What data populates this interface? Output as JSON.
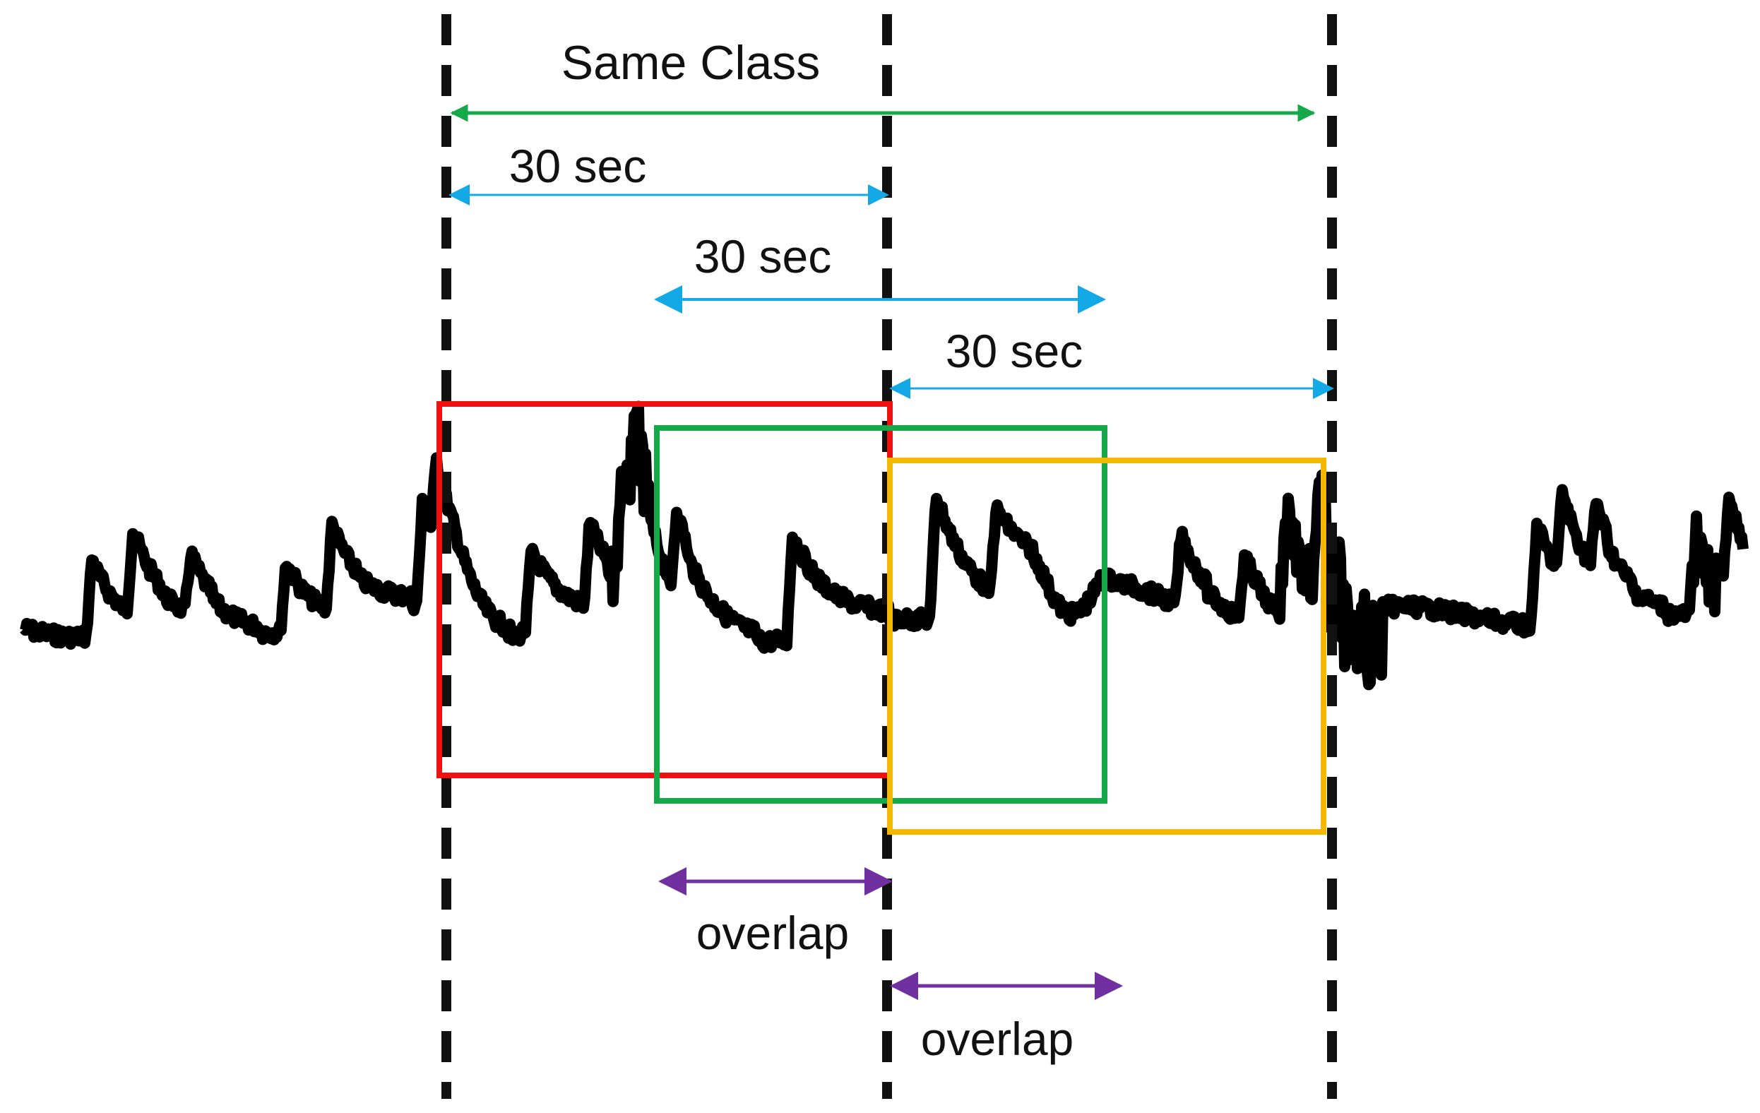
{
  "labels": {
    "same_class": "Same Class",
    "window_1": "30 sec",
    "window_2": "30 sec",
    "window_3": "30 sec",
    "overlap_1": "overlap",
    "overlap_2": "overlap"
  },
  "colors": {
    "same_class_arrow": "#17a84a",
    "window_arrow": "#12a9e6",
    "overlap_arrow": "#7030a0",
    "window_red": "#ee1111",
    "window_green": "#17a84a",
    "window_yellow": "#f5b800",
    "boundary_lines": "#111111",
    "signal": "#000000"
  }
}
